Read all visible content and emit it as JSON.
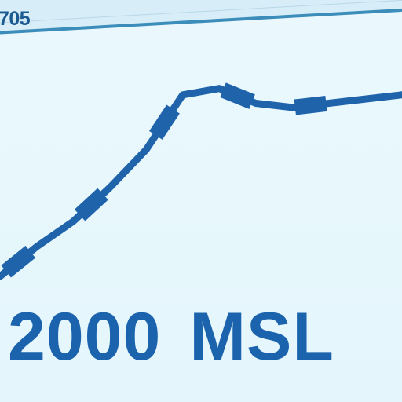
{
  "header": {
    "label": "705"
  },
  "footer": {
    "value": "2000",
    "unit": "MSL"
  },
  "colors": {
    "line": "#1f63ab",
    "background": "#e8f8fd",
    "band": "#3d8dbb"
  },
  "chart_data": {
    "type": "line",
    "title": "",
    "xlabel": "",
    "ylabel": "",
    "grid": false,
    "x": [
      0,
      1,
      2,
      3,
      4,
      5,
      6,
      7,
      8,
      9,
      10,
      11
    ],
    "series": [
      {
        "values": [
          0,
          7,
          13,
          21,
          30,
          43,
          44.5,
          41,
          40,
          41,
          42,
          43
        ]
      }
    ],
    "markers_at": [
      1,
      3,
      5,
      7,
      9
    ]
  }
}
